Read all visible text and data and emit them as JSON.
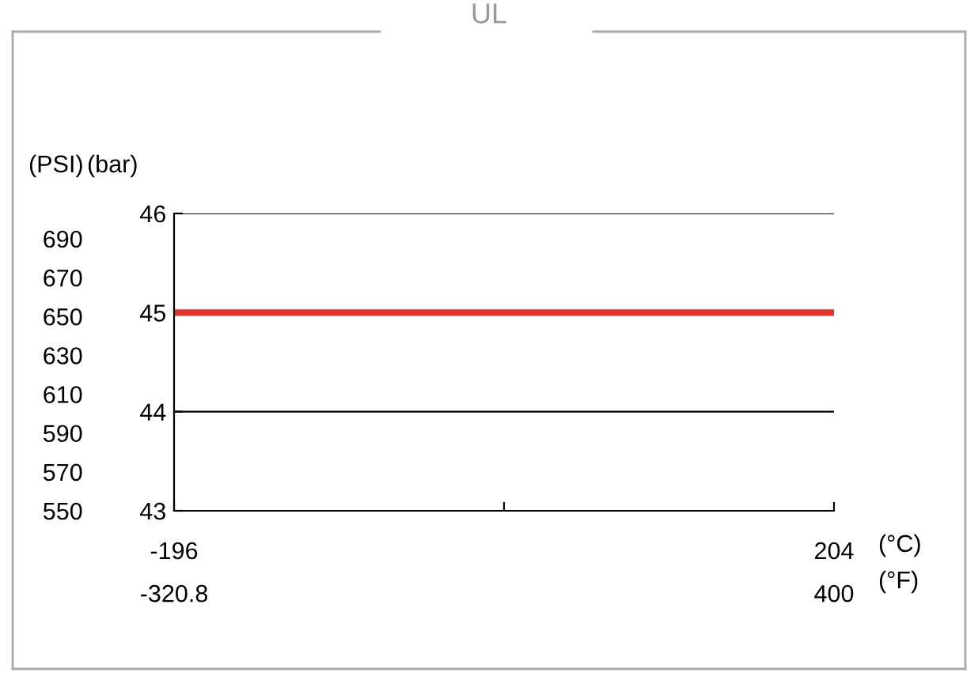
{
  "chart_data": {
    "type": "line",
    "title": "UL",
    "xlabel": "(°C)",
    "x2label": "(°F)",
    "ylabel": "(bar)",
    "y2label": "(PSI)",
    "x": [
      -196,
      204
    ],
    "series": [
      {
        "color": "#e8312a",
        "values": [
          45,
          45
        ]
      }
    ],
    "xlim": [
      -196,
      204
    ],
    "xticks": [
      -196,
      {
        "value": 4,
        "label": null
      },
      204
    ],
    "x2lim": [
      -320.8,
      400
    ],
    "x2ticks": [
      -320.8,
      400
    ],
    "ylim": [
      43,
      46
    ],
    "yticks": [
      43,
      44,
      45,
      46
    ],
    "y2lim": [
      550,
      703
    ],
    "y2ticks": [
      550,
      570,
      590,
      610,
      630,
      650,
      670,
      690
    ],
    "grid": "y",
    "marker": "none",
    "line_style": "solid"
  }
}
